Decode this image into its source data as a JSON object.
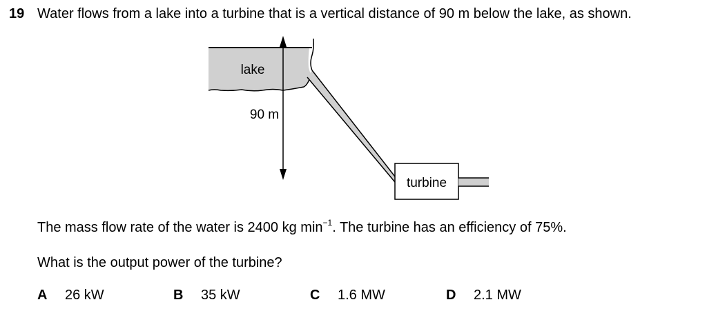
{
  "question": {
    "number": "19",
    "stem": "Water flows from a lake into a turbine that is a vertical distance of 90 m below the lake, as shown.",
    "info_main": "The mass flow rate of the water is 2400 kg min",
    "info_exponent": "−1",
    "info_tail": ". The turbine has an efficiency of 75%.",
    "prompt": "What is the output power of the turbine?"
  },
  "diagram": {
    "lake_label": "lake",
    "distance_label": "90 m",
    "turbine_label": "turbine",
    "lake_fill": "#d0d0d0",
    "pipe_fill": "#d0d0d0"
  },
  "options": [
    {
      "letter": "A",
      "text": "26 kW"
    },
    {
      "letter": "B",
      "text": "35 kW"
    },
    {
      "letter": "C",
      "text": "1.6 MW"
    },
    {
      "letter": "D",
      "text": "2.1 MW"
    }
  ]
}
